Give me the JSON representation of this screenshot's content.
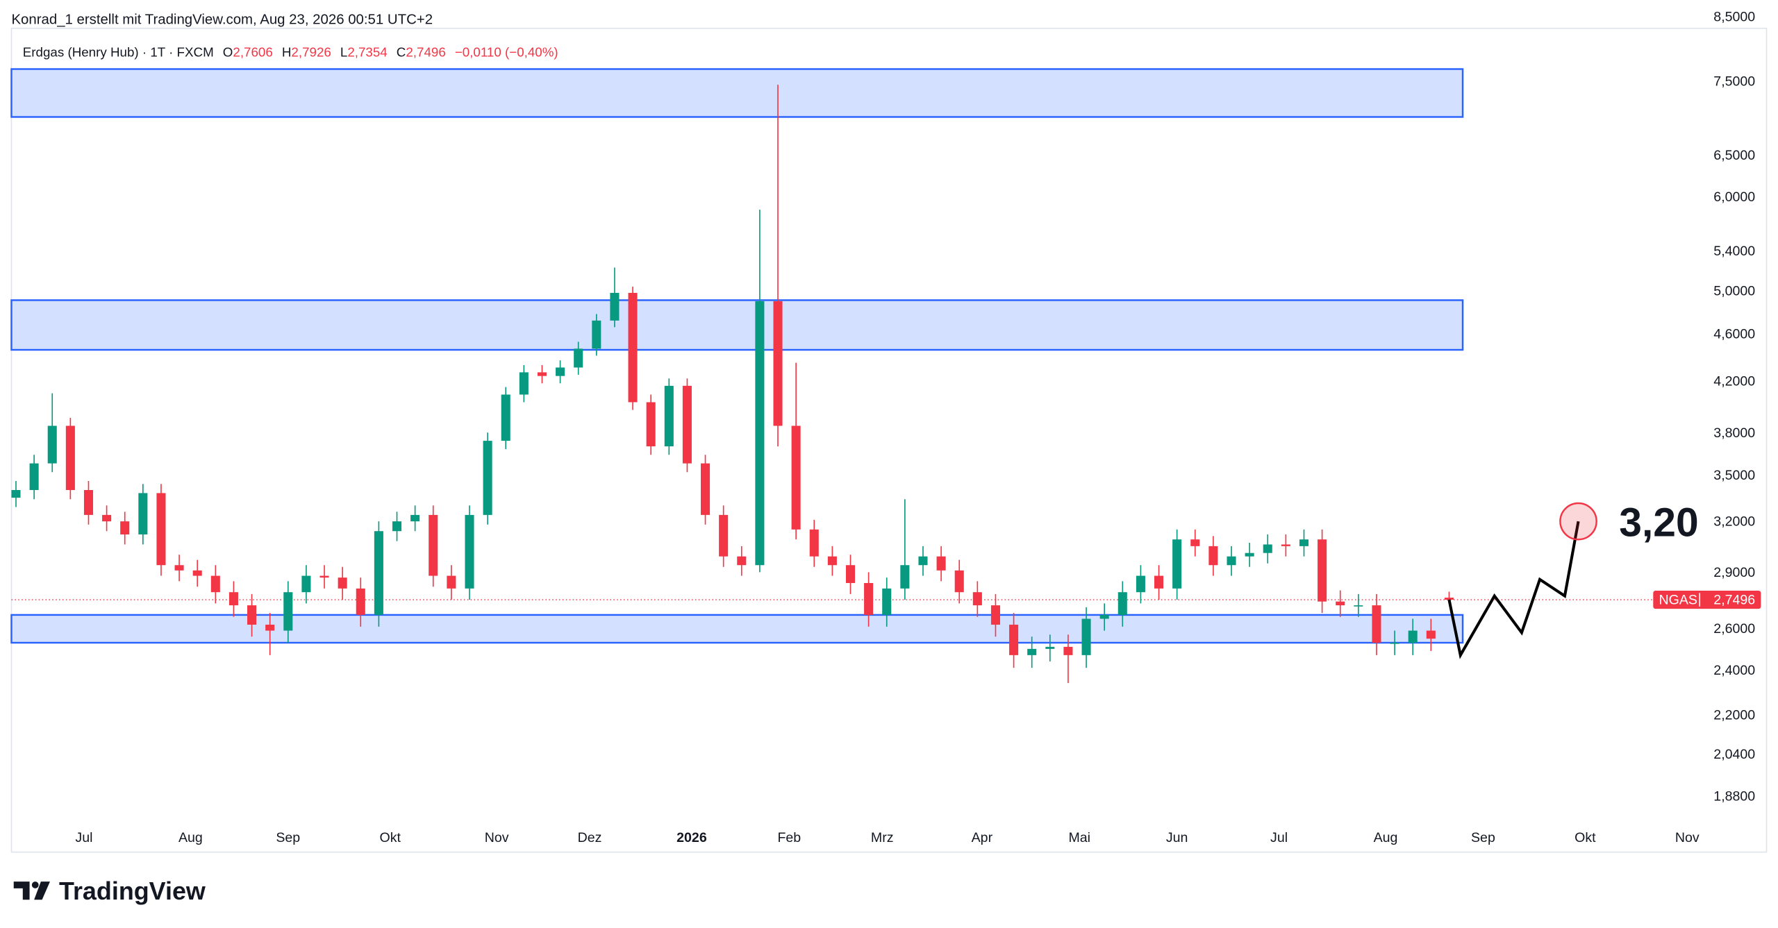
{
  "header": {
    "credit": "Konrad_1 erstellt mit TradingView.com, Aug 23, 2026 00:51 UTC+2"
  },
  "brand": "TradingView",
  "chart_data": {
    "type": "candlestick",
    "legend": {
      "instrument": "Erdgas (Henry Hub) · 1T · FXCM",
      "items": [
        {
          "key": "O",
          "label": "2,7606"
        },
        {
          "key": "H",
          "label": "2,7926"
        },
        {
          "key": "L",
          "label": "2,7354"
        },
        {
          "key": "C",
          "label": "2,7496"
        }
      ],
      "change": "−0,0110 (−0,40%)"
    },
    "log_scale": true,
    "grid": false,
    "up_color": "#089981",
    "down_color": "#f23645",
    "ylim": [
      1.79,
      8.31
    ],
    "yticks": [
      {
        "value": 8.5,
        "label": "8,5000"
      },
      {
        "value": 7.5,
        "label": "7,5000"
      },
      {
        "value": 6.5,
        "label": "6,5000"
      },
      {
        "value": 6,
        "label": "6,0000"
      },
      {
        "value": 5.4,
        "label": "5,4000"
      },
      {
        "value": 5,
        "label": "5,0000"
      },
      {
        "value": 4.6,
        "label": "4,6000"
      },
      {
        "value": 4.2,
        "label": "4,2000"
      },
      {
        "value": 3.8,
        "label": "3,8000"
      },
      {
        "value": 3.5,
        "label": "3,5000"
      },
      {
        "value": 3.2,
        "label": "3,2000"
      },
      {
        "value": 2.9,
        "label": "2,9000"
      },
      {
        "value": 2.6,
        "label": "2,6000"
      },
      {
        "value": 2.4,
        "label": "2,4000"
      },
      {
        "value": 2.2,
        "label": "2,2000"
      },
      {
        "value": 2.04,
        "label": "2,0400"
      },
      {
        "value": 1.88,
        "label": "1,8800"
      }
    ],
    "xlim": [
      0,
      372.5
    ],
    "xticks": [
      {
        "value": 16,
        "label": "Jul"
      },
      {
        "value": 39.5,
        "label": "Aug"
      },
      {
        "value": 61,
        "label": "Sep"
      },
      {
        "value": 83.5,
        "label": "Okt"
      },
      {
        "value": 107,
        "label": "Nov"
      },
      {
        "value": 127.5,
        "label": "Dez"
      },
      {
        "value": 150,
        "label": "2026"
      },
      {
        "value": 171.5,
        "label": "Feb"
      },
      {
        "value": 192,
        "label": "Mrz"
      },
      {
        "value": 214,
        "label": "Apr"
      },
      {
        "value": 235.5,
        "label": "Mai"
      },
      {
        "value": 257,
        "label": "Jun"
      },
      {
        "value": 279.5,
        "label": "Jul"
      },
      {
        "value": 303,
        "label": "Aug"
      },
      {
        "value": 324.5,
        "label": "Sep"
      },
      {
        "value": 347,
        "label": "Okt"
      },
      {
        "value": 369.5,
        "label": "Nov"
      }
    ],
    "x": [
      1,
      5,
      9,
      13,
      17,
      21,
      25,
      29,
      33,
      37,
      41,
      45,
      49,
      53,
      57,
      61,
      65,
      69,
      73,
      77,
      81,
      85,
      89,
      93,
      97,
      101,
      105,
      109,
      113,
      117,
      121,
      125,
      129,
      133,
      137,
      141,
      145,
      149,
      153,
      157,
      161,
      165,
      169,
      173,
      177,
      181,
      185,
      189,
      193,
      197,
      201,
      205,
      209,
      213,
      217,
      221,
      225,
      229,
      233,
      237,
      241,
      245,
      249,
      253,
      257,
      261,
      265,
      269,
      273,
      277,
      281,
      285,
      289,
      293,
      297,
      301,
      305,
      309,
      313,
      317
    ],
    "open": [
      3.35,
      3.4,
      3.58,
      3.85,
      3.4,
      3.24,
      3.2,
      3.12,
      3.38,
      2.94,
      2.91,
      2.88,
      2.79,
      2.72,
      2.62,
      2.59,
      2.79,
      2.88,
      2.87,
      2.81,
      2.67,
      3.14,
      3.2,
      3.24,
      2.88,
      2.81,
      3.24,
      3.74,
      4.09,
      4.27,
      4.24,
      4.31,
      4.47,
      4.72,
      4.98,
      4.03,
      3.7,
      4.16,
      3.58,
      3.24,
      2.99,
      2.94,
      4.9,
      3.85,
      3.15,
      2.99,
      2.94,
      2.84,
      2.67,
      2.81,
      2.94,
      2.99,
      2.91,
      2.79,
      2.72,
      2.62,
      2.47,
      2.5,
      2.51,
      2.47,
      2.65,
      2.67,
      2.79,
      2.88,
      2.81,
      3.09,
      3.05,
      2.94,
      2.99,
      3.01,
      3.06,
      3.05,
      3.09,
      2.74,
      2.72,
      2.72,
      2.53,
      2.53,
      2.59,
      2.7606
    ],
    "high": [
      3.46,
      3.64,
      4.1,
      3.91,
      3.46,
      3.3,
      3.26,
      3.44,
      3.44,
      3.0,
      2.97,
      2.94,
      2.85,
      2.78,
      2.68,
      2.85,
      2.94,
      2.94,
      2.93,
      2.87,
      3.2,
      3.26,
      3.3,
      3.3,
      2.94,
      3.3,
      3.8,
      4.15,
      4.33,
      4.33,
      4.37,
      4.53,
      4.78,
      5.23,
      5.04,
      4.09,
      4.22,
      4.22,
      3.64,
      3.3,
      3.05,
      5.85,
      7.45,
      4.35,
      3.21,
      3.05,
      3.0,
      2.9,
      2.87,
      3.34,
      3.05,
      3.05,
      2.97,
      2.85,
      2.78,
      2.68,
      2.56,
      2.57,
      2.57,
      2.71,
      2.73,
      2.85,
      2.94,
      2.94,
      3.15,
      3.15,
      3.11,
      3.05,
      3.07,
      3.12,
      3.12,
      3.15,
      3.15,
      2.8,
      2.78,
      2.78,
      2.59,
      2.65,
      2.65,
      2.7926
    ],
    "low": [
      3.29,
      3.34,
      3.52,
      3.34,
      3.18,
      3.14,
      3.06,
      3.06,
      2.88,
      2.85,
      2.82,
      2.73,
      2.66,
      2.56,
      2.47,
      2.53,
      2.73,
      2.81,
      2.75,
      2.61,
      2.61,
      3.08,
      3.14,
      2.82,
      2.75,
      2.75,
      3.18,
      3.68,
      4.03,
      4.18,
      4.18,
      4.25,
      4.41,
      4.66,
      3.97,
      3.64,
      3.64,
      3.52,
      3.18,
      2.93,
      2.88,
      2.9,
      3.7,
      3.09,
      2.93,
      2.88,
      2.78,
      2.61,
      2.61,
      2.75,
      2.88,
      2.85,
      2.73,
      2.66,
      2.56,
      2.41,
      2.41,
      2.44,
      2.34,
      2.41,
      2.59,
      2.61,
      2.73,
      2.75,
      2.75,
      2.99,
      2.88,
      2.88,
      2.93,
      2.95,
      2.99,
      2.99,
      2.68,
      2.66,
      2.66,
      2.47,
      2.47,
      2.47,
      2.49,
      2.7354
    ],
    "close": [
      3.4,
      3.58,
      3.85,
      3.4,
      3.24,
      3.2,
      3.12,
      3.38,
      2.94,
      2.91,
      2.88,
      2.79,
      2.72,
      2.62,
      2.59,
      2.79,
      2.88,
      2.87,
      2.81,
      2.67,
      3.14,
      3.2,
      3.24,
      2.88,
      2.81,
      3.24,
      3.74,
      4.09,
      4.27,
      4.24,
      4.31,
      4.47,
      4.72,
      4.98,
      4.03,
      3.7,
      4.16,
      3.58,
      3.24,
      2.99,
      2.94,
      4.9,
      3.85,
      3.15,
      2.99,
      2.94,
      2.84,
      2.67,
      2.81,
      2.94,
      2.99,
      2.91,
      2.79,
      2.72,
      2.62,
      2.47,
      2.5,
      2.51,
      2.47,
      2.65,
      2.67,
      2.79,
      2.88,
      2.81,
      3.09,
      3.05,
      2.94,
      2.99,
      3.01,
      3.06,
      3.05,
      3.09,
      2.74,
      2.72,
      2.72,
      2.53,
      2.53,
      2.59,
      2.55,
      2.7496
    ],
    "zones": [
      {
        "x": [
          0,
          320
        ],
        "low": 7.0,
        "high": 7.68
      },
      {
        "x": [
          0,
          320
        ],
        "low": 4.46,
        "high": 4.91
      },
      {
        "x": [
          0,
          320
        ],
        "low": 2.53,
        "high": 2.67
      }
    ],
    "zone_color": "#2962ff",
    "last_price": {
      "symbol": "NGAS",
      "value": 2.7496,
      "label": "2,7496"
    },
    "projection": {
      "x": [
        317,
        319.5,
        327,
        333,
        337,
        342.5,
        345.5
      ],
      "values": [
        2.75,
        2.47,
        2.77,
        2.58,
        2.86,
        2.77,
        3.2
      ]
    },
    "target": {
      "x": 345.5,
      "value": 3.2,
      "label": "3,20"
    }
  }
}
